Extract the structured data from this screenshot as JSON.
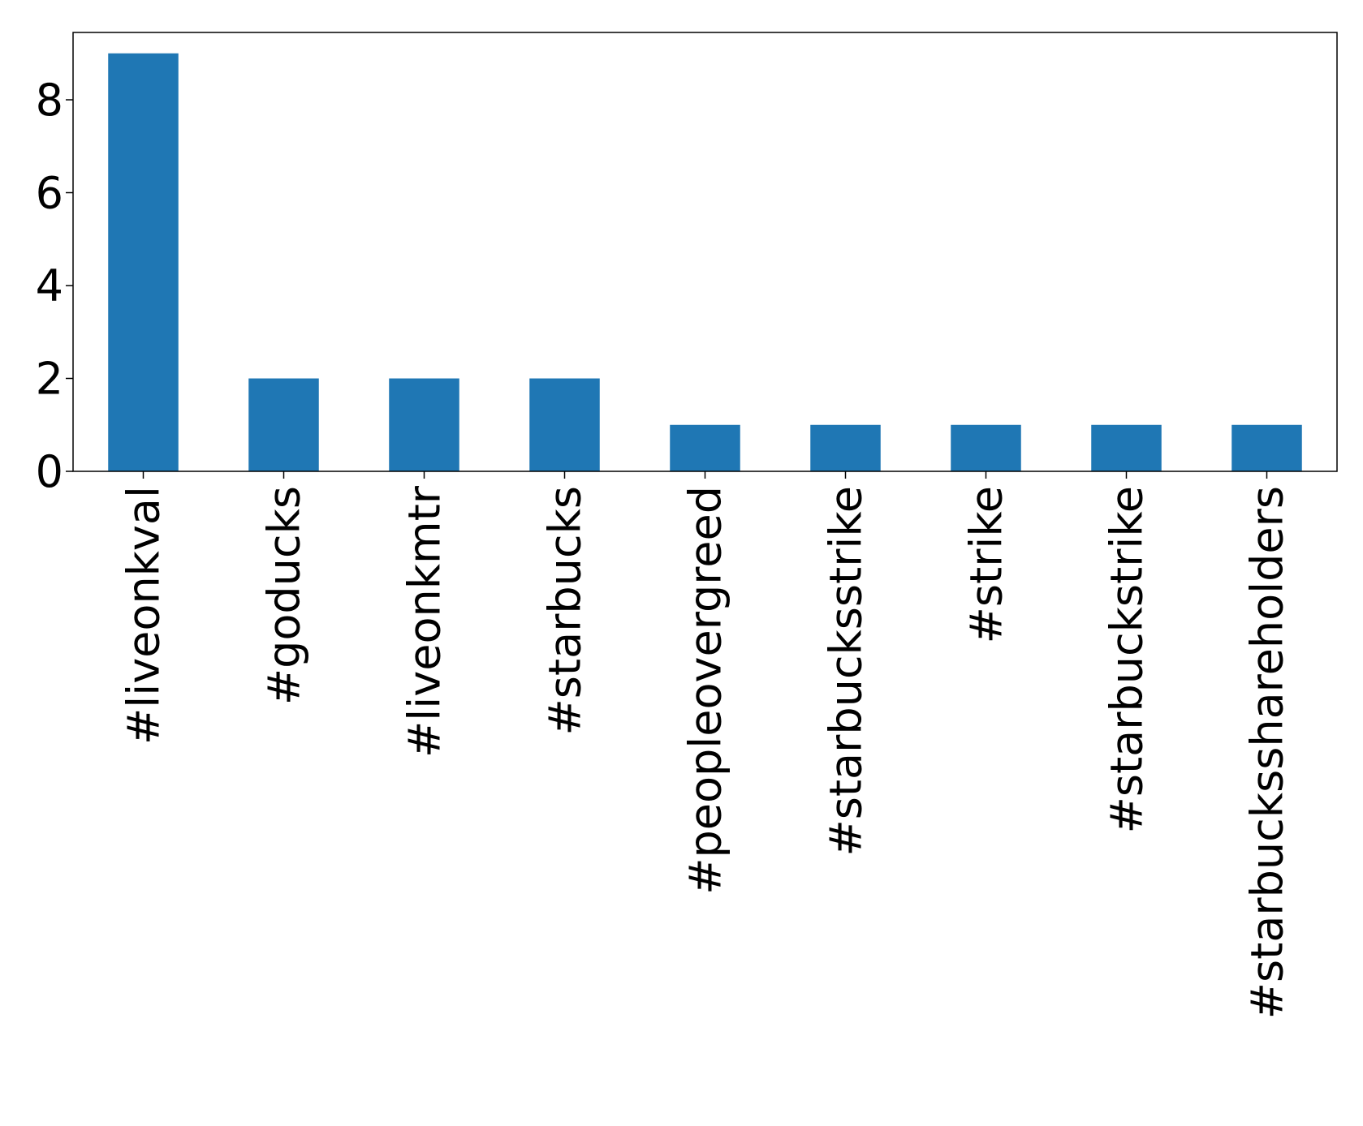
{
  "chart_data": {
    "type": "bar",
    "categories": [
      "#liveonkval",
      "#goducks",
      "#liveonkmtr",
      "#starbucks",
      "#peopleovergreed",
      "#starbucksstrike",
      "#strike",
      "#starbuckstrike",
      "#starbucksshareholders"
    ],
    "values": [
      9,
      2,
      2,
      2,
      1,
      1,
      1,
      1,
      1
    ],
    "title": "",
    "xlabel": "",
    "ylabel": "",
    "ylim": [
      0,
      9.45
    ],
    "yticks": [
      0,
      2,
      4,
      6,
      8
    ],
    "grid": false,
    "bar_color": "#1f77b4"
  }
}
